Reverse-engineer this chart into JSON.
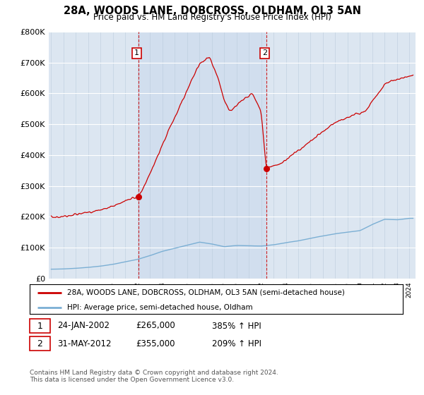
{
  "title": "28A, WOODS LANE, DOBCROSS, OLDHAM, OL3 5AN",
  "subtitle": "Price paid vs. HM Land Registry's House Price Index (HPI)",
  "ylim": [
    0,
    800000
  ],
  "xlim_start": 1994.8,
  "xlim_end": 2024.5,
  "plot_bg_color": "#dce6f1",
  "legend_label_red": "28A, WOODS LANE, DOBCROSS, OLDHAM, OL3 5AN (semi-detached house)",
  "legend_label_blue": "HPI: Average price, semi-detached house, Oldham",
  "sale1_date": 2002.07,
  "sale1_price": 265000,
  "sale1_label": "1",
  "sale1_display": "24-JAN-2002",
  "sale1_amount": "£265,000",
  "sale1_hpi": "385% ↑ HPI",
  "sale2_date": 2012.42,
  "sale2_price": 355000,
  "sale2_label": "2",
  "sale2_display": "31-MAY-2012",
  "sale2_amount": "£355,000",
  "sale2_hpi": "209% ↑ HPI",
  "footer": "Contains HM Land Registry data © Crown copyright and database right 2024.\nThis data is licensed under the Open Government Licence v3.0.",
  "red_line_color": "#cc0000",
  "blue_line_color": "#7bafd4",
  "marker_box_color": "#cc0000",
  "dashed_line_color": "#cc0000",
  "hpi_years": [
    1995,
    1996,
    1997,
    1998,
    1999,
    2000,
    2001,
    2002,
    2003,
    2004,
    2005,
    2006,
    2007,
    2008,
    2009,
    2010,
    2011,
    2012,
    2013,
    2014,
    2015,
    2016,
    2017,
    2018,
    2019,
    2020,
    2021,
    2022,
    2023,
    2024
  ],
  "hpi_values": [
    30000,
    31000,
    33000,
    36000,
    40000,
    46000,
    54000,
    62000,
    74000,
    88000,
    98000,
    108000,
    118000,
    112000,
    103000,
    107000,
    106000,
    105000,
    109000,
    116000,
    122000,
    130000,
    138000,
    145000,
    150000,
    155000,
    175000,
    192000,
    190000,
    195000
  ],
  "red_years": [
    1995.0,
    1995.5,
    1996.0,
    1996.5,
    1997.0,
    1997.5,
    1998.0,
    1998.5,
    1999.0,
    1999.5,
    2000.0,
    2000.5,
    2001.0,
    2001.5,
    2002.07,
    2002.5,
    2003.0,
    2003.5,
    2004.0,
    2004.5,
    2005.0,
    2005.5,
    2006.0,
    2006.5,
    2007.0,
    2007.5,
    2007.8,
    2008.0,
    2008.5,
    2009.0,
    2009.5,
    2010.0,
    2010.5,
    2011.0,
    2011.3,
    2011.5,
    2011.8,
    2012.0,
    2012.42,
    2012.6,
    2013.0,
    2013.5,
    2014.0,
    2014.5,
    2015.0,
    2015.5,
    2016.0,
    2016.5,
    2017.0,
    2017.5,
    2018.0,
    2018.5,
    2019.0,
    2019.5,
    2020.0,
    2020.5,
    2021.0,
    2021.5,
    2022.0,
    2022.5,
    2023.0,
    2023.5,
    2024.0,
    2024.3
  ],
  "red_values": [
    200000,
    198000,
    202000,
    205000,
    208000,
    210000,
    215000,
    218000,
    222000,
    228000,
    235000,
    242000,
    252000,
    260000,
    265000,
    295000,
    340000,
    385000,
    430000,
    480000,
    520000,
    565000,
    610000,
    655000,
    695000,
    710000,
    720000,
    700000,
    650000,
    580000,
    540000,
    560000,
    580000,
    590000,
    600000,
    580000,
    560000,
    540000,
    355000,
    360000,
    365000,
    370000,
    385000,
    400000,
    415000,
    430000,
    445000,
    460000,
    475000,
    490000,
    505000,
    515000,
    520000,
    530000,
    535000,
    545000,
    575000,
    600000,
    630000,
    640000,
    645000,
    650000,
    655000,
    660000
  ]
}
